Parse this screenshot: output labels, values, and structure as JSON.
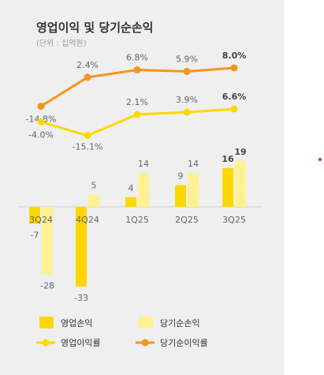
{
  "chart_data": {
    "type": "bar",
    "title": "영업이익 및 당기순손익",
    "subtitle": "(단위 : 십억원)",
    "categories": [
      "3Q24",
      "4Q24",
      "1Q25",
      "2Q25",
      "3Q25"
    ],
    "series": [
      {
        "name": "영업손익",
        "type": "bar",
        "values": [
          -7,
          -33,
          4,
          9,
          16
        ],
        "color": "#ffd700"
      },
      {
        "name": "당기순손익",
        "type": "bar",
        "values": [
          -28,
          5,
          14,
          14,
          19
        ],
        "color": "#fff08a"
      },
      {
        "name": "영업이익률",
        "type": "line",
        "unit": "%",
        "values": [
          -4.0,
          -15.1,
          2.1,
          3.9,
          6.6
        ],
        "labels": [
          "-4.0%",
          "-15.1%",
          "2.1%",
          "3.9%",
          "6.6%"
        ],
        "color": "#ffd700"
      },
      {
        "name": "당기순이익률",
        "type": "line",
        "unit": "%",
        "values": [
          -14.8,
          2.4,
          6.8,
          5.9,
          8.0
        ],
        "labels": [
          "-14.8%",
          "2.4%",
          "6.8%",
          "5.9%",
          "8.0%"
        ],
        "color": "#f7941d"
      }
    ],
    "legend_position": "bottom"
  },
  "colors": {
    "panel_background": "#efefef",
    "accent_dot": "#e0303a",
    "label_text": "#666666",
    "emphasis_text": "#444444"
  }
}
